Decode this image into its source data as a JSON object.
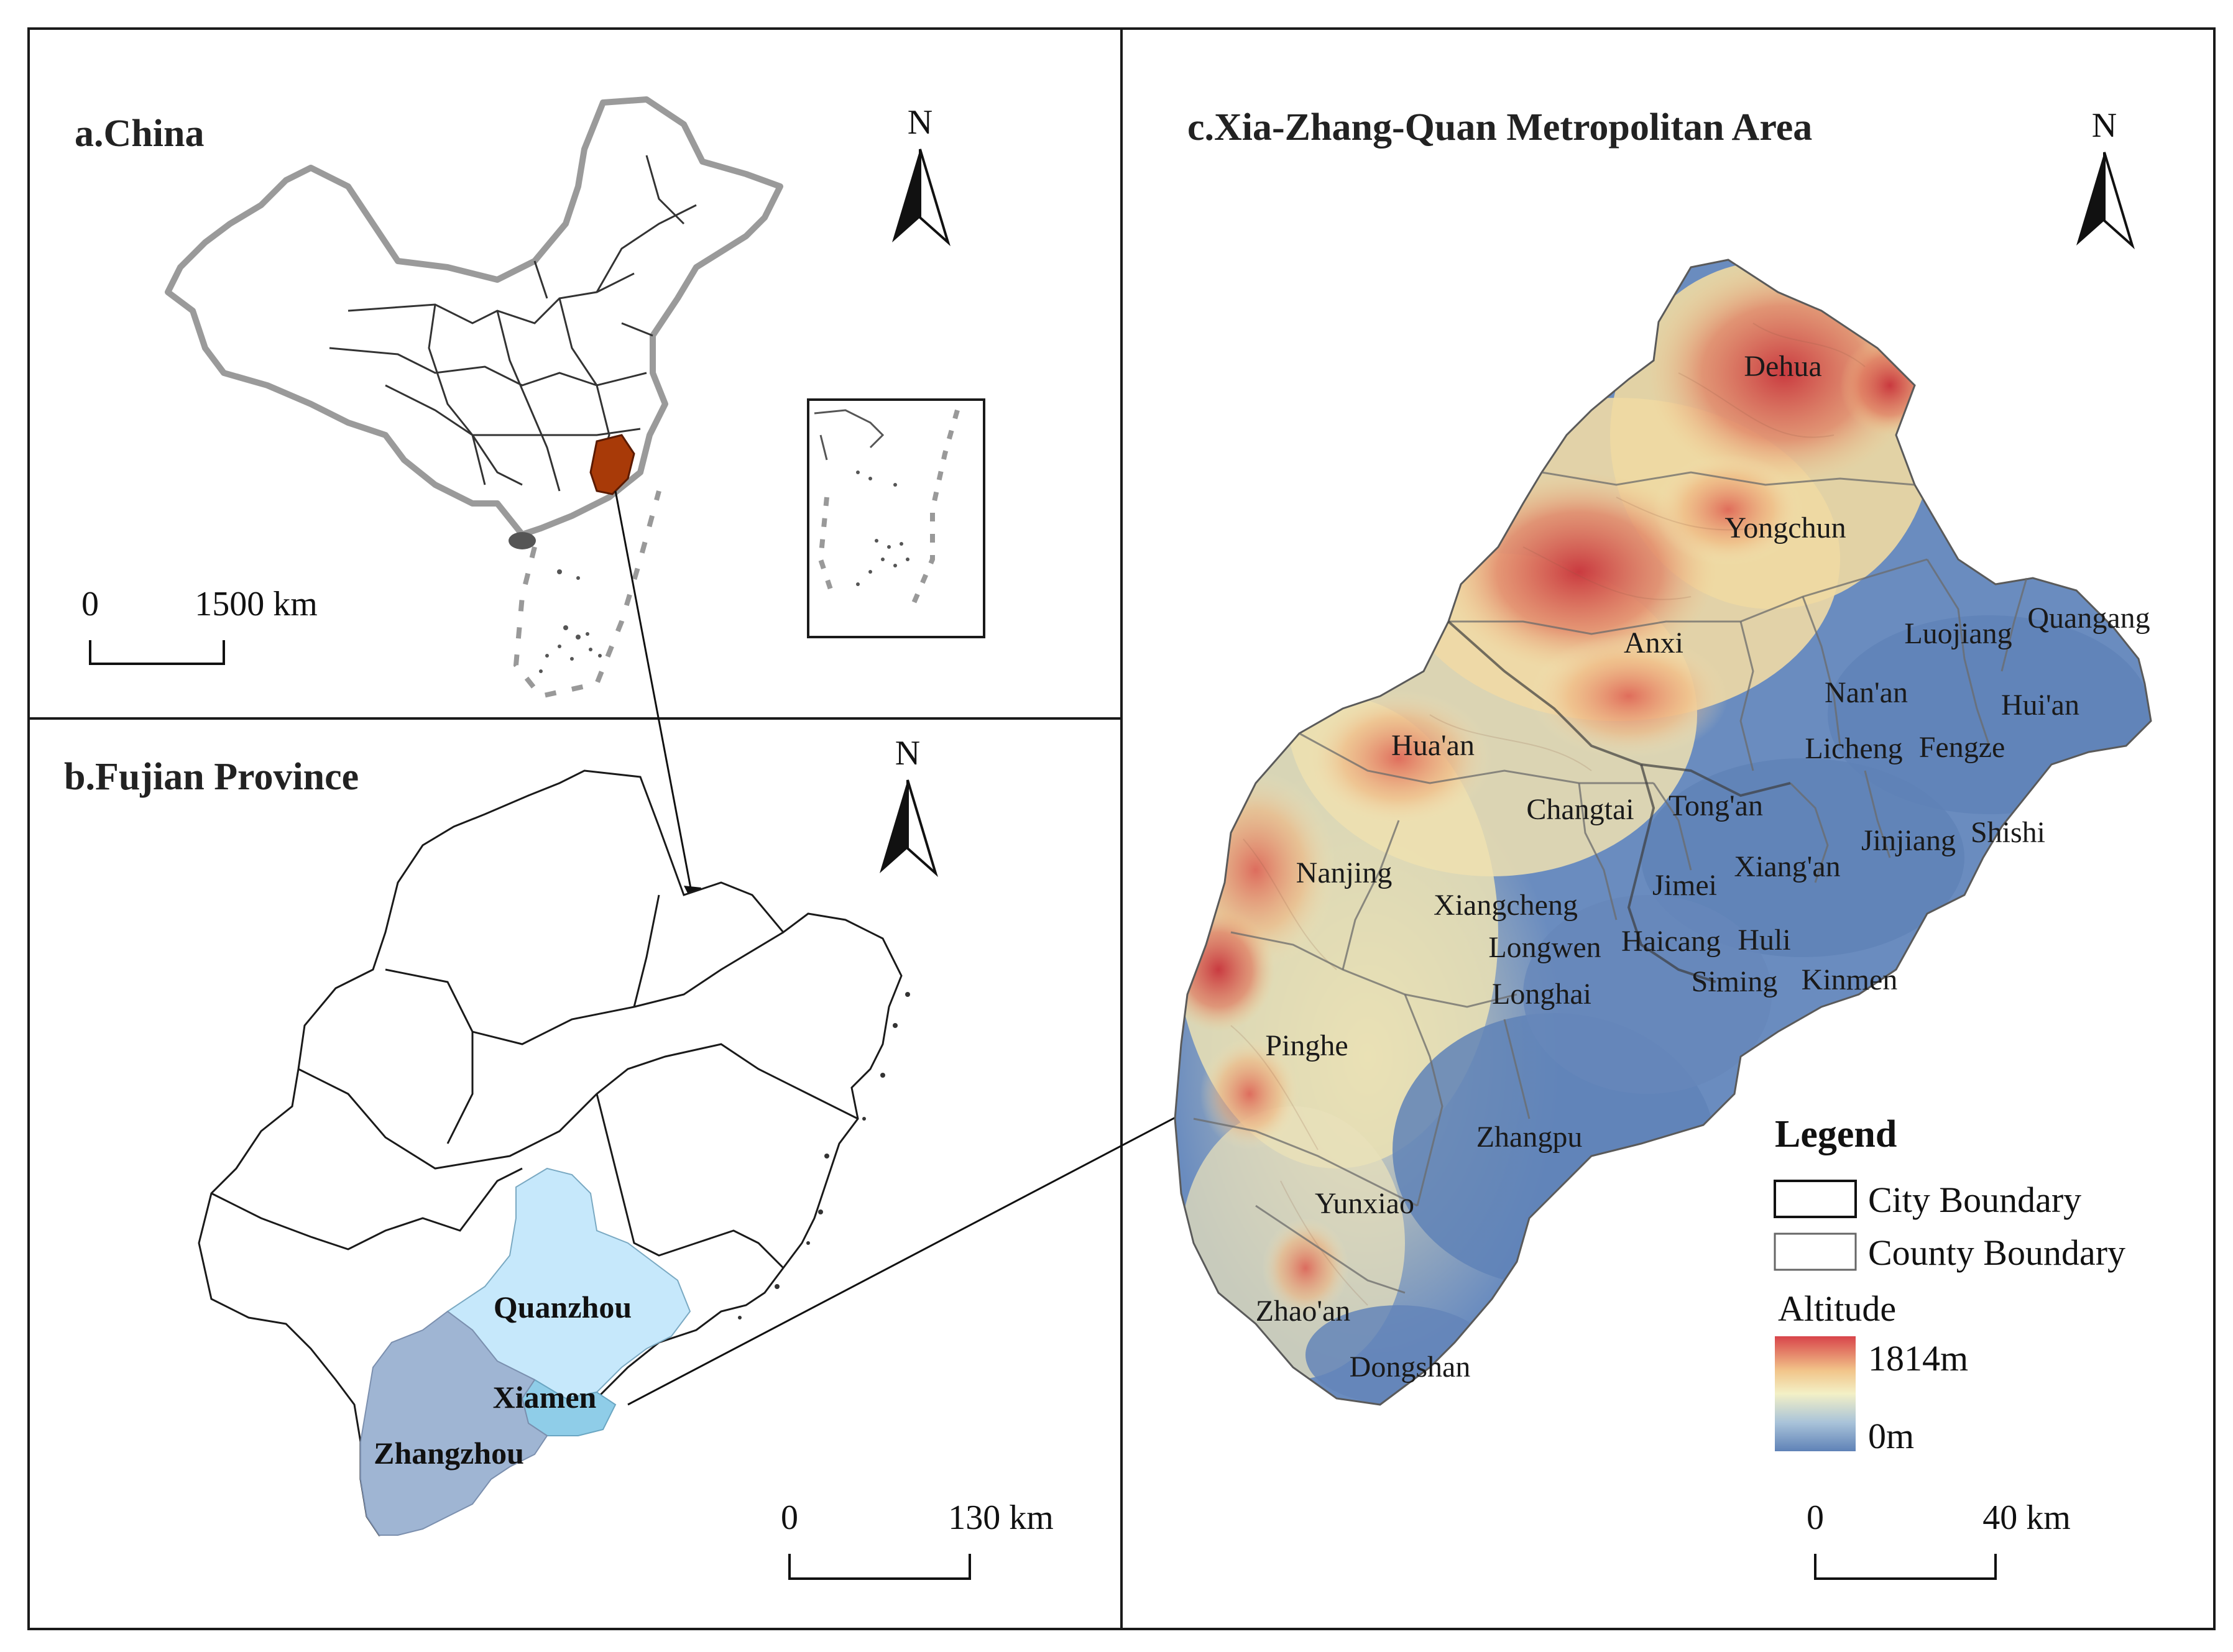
{
  "panels": {
    "a": {
      "title": "a.China",
      "scale_zero": "0",
      "scale_label": "1500 km",
      "north": "N",
      "highlight_color": "#a83a08"
    },
    "b": {
      "title": "b.Fujian Province",
      "scale_zero": "0",
      "scale_label": "130 km",
      "north": "N",
      "cities": [
        "Quanzhou",
        "Xiamen",
        "Zhangzhou"
      ],
      "colors": {
        "Quanzhou": "#c6e8fb",
        "Xiamen": "#8fcde8",
        "Zhangzhou": "#9fb5d3"
      }
    },
    "c": {
      "title": "c.Xia-Zhang-Quan Metropolitan Area",
      "scale_zero": "0",
      "scale_label": "40 km",
      "north": "N",
      "counties": [
        "Dehua",
        "Yongchun",
        "Anxi",
        "Luojiang",
        "Quangang",
        "Nan'an",
        "Hui'an",
        "Licheng",
        "Fengze",
        "Hua'an",
        "Changtai",
        "Tong'an",
        "Jinjiang",
        "Shishi",
        "Nanjing",
        "Jimei",
        "Xiang'an",
        "Xiangcheng",
        "Longwen",
        "Haicang",
        "Huli",
        "Siming",
        "Kinmen",
        "Longhai",
        "Pinghe",
        "Zhangpu",
        "Yunxiao",
        "Zhao'an",
        "Dongshan"
      ],
      "legend": {
        "title": "Legend",
        "city_boundary": "City Boundary",
        "county_boundary": "County Boundary",
        "altitude_title": "Altitude",
        "max": "1814m",
        "min": "0m",
        "ramp_colors": [
          "#d8444a",
          "#f2c58a",
          "#f3f0c6",
          "#a9c3d9",
          "#5f82b7"
        ]
      }
    }
  }
}
